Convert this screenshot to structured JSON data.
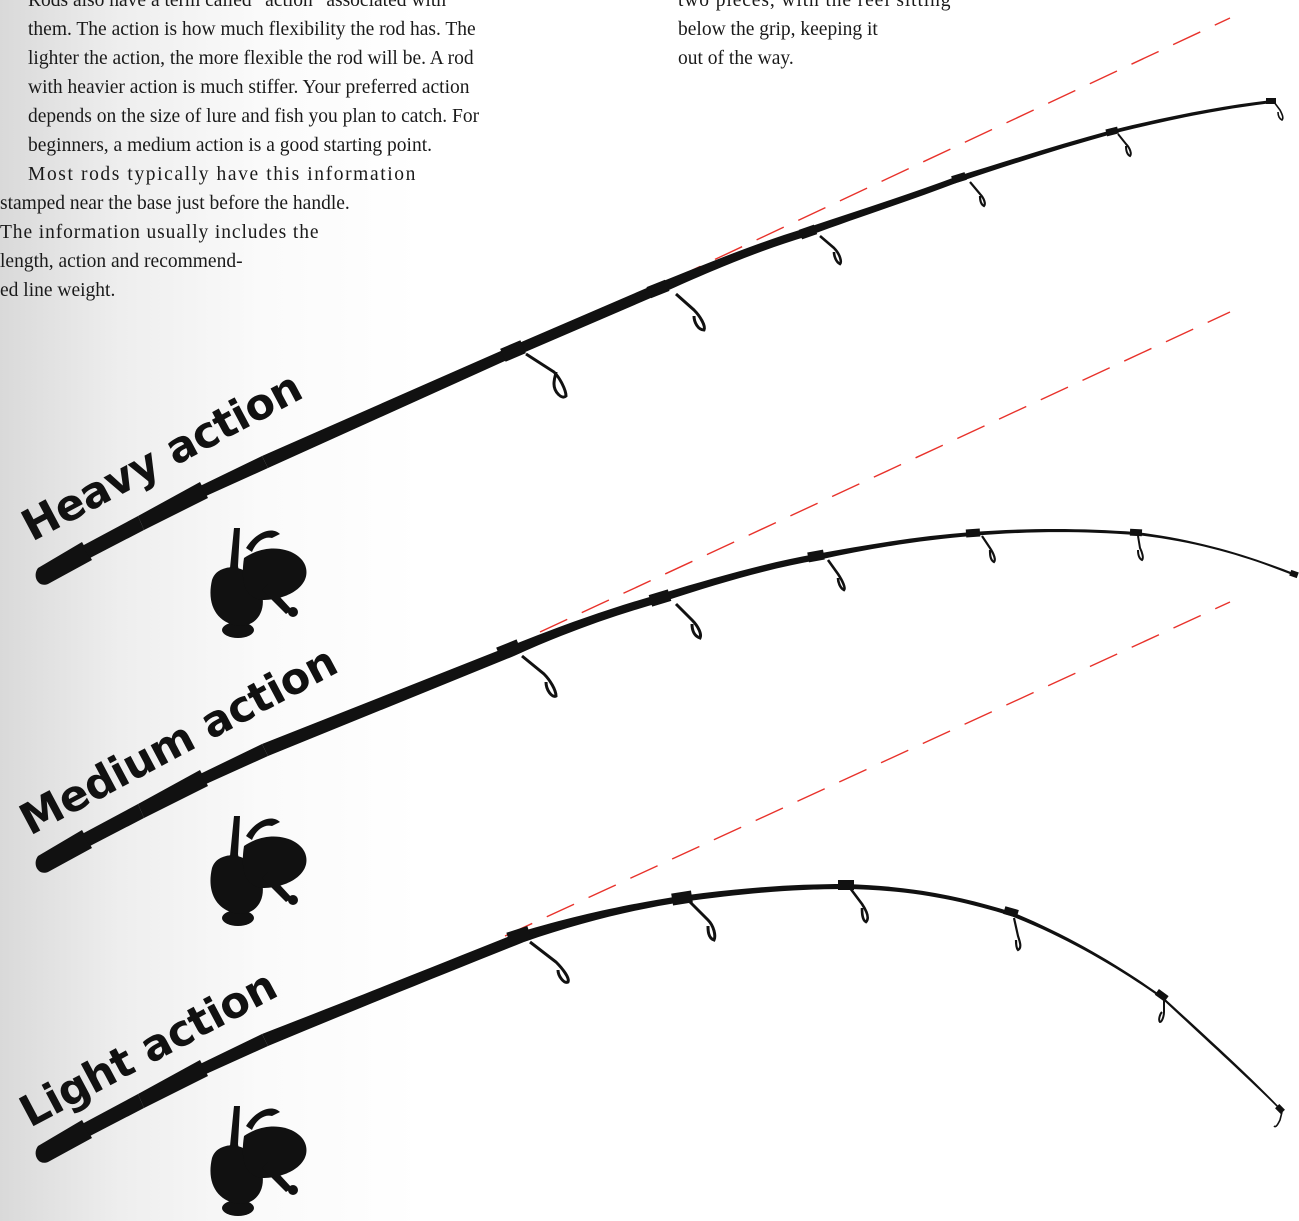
{
  "left_text": {
    "para1_lines": [
      "Rods also have a term called “action” associated with",
      "them. The action is how much flexibility the rod has. The",
      "lighter the action, the more flexible the rod will be. A rod",
      "with heavier action is much stiffer. Your preferred action",
      "depends on the size of lure and fish you plan to catch. For",
      "beginners, a medium action is a good starting point."
    ],
    "para2_lines": [
      "Most rods typically have this information",
      "stamped near the base just before the handle.",
      "The information usually includes the",
      "length, action and recommend-",
      "ed line weight."
    ]
  },
  "right_text": {
    "lines": [
      "two pieces, with the reel sitting",
      "below the grip, keeping it",
      "out of the way."
    ]
  },
  "rods": [
    {
      "label": "Heavy action"
    },
    {
      "label": "Medium action"
    },
    {
      "label": "Light action"
    }
  ],
  "colors": {
    "reference_line": "#e8322b",
    "rod": "#111111"
  }
}
